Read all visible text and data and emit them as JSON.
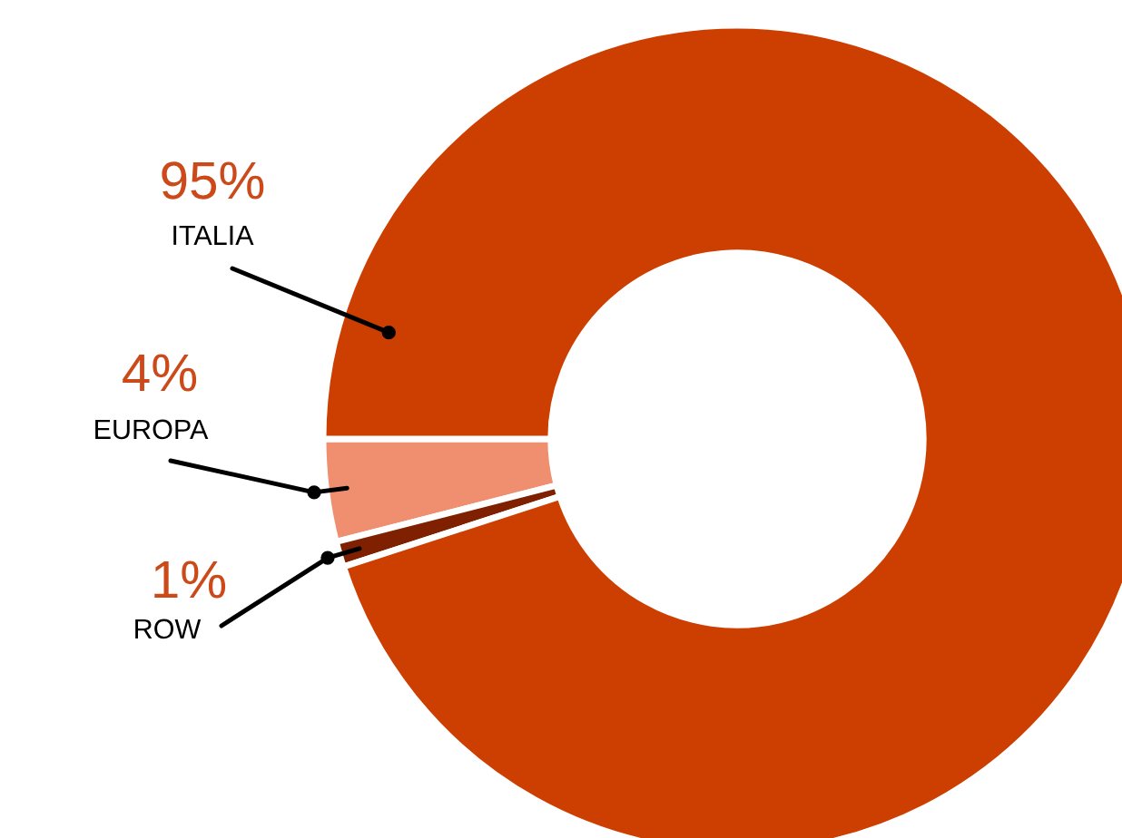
{
  "chart_data": {
    "type": "donut",
    "categories": [
      "EUROPA",
      "ROW",
      "ITALIA"
    ],
    "values": [
      4,
      1,
      95
    ],
    "colors": [
      "#f08f70",
      "#7f2100",
      "#cc3f00"
    ],
    "value_labels": [
      "4%",
      "1%",
      "95%"
    ]
  }
}
